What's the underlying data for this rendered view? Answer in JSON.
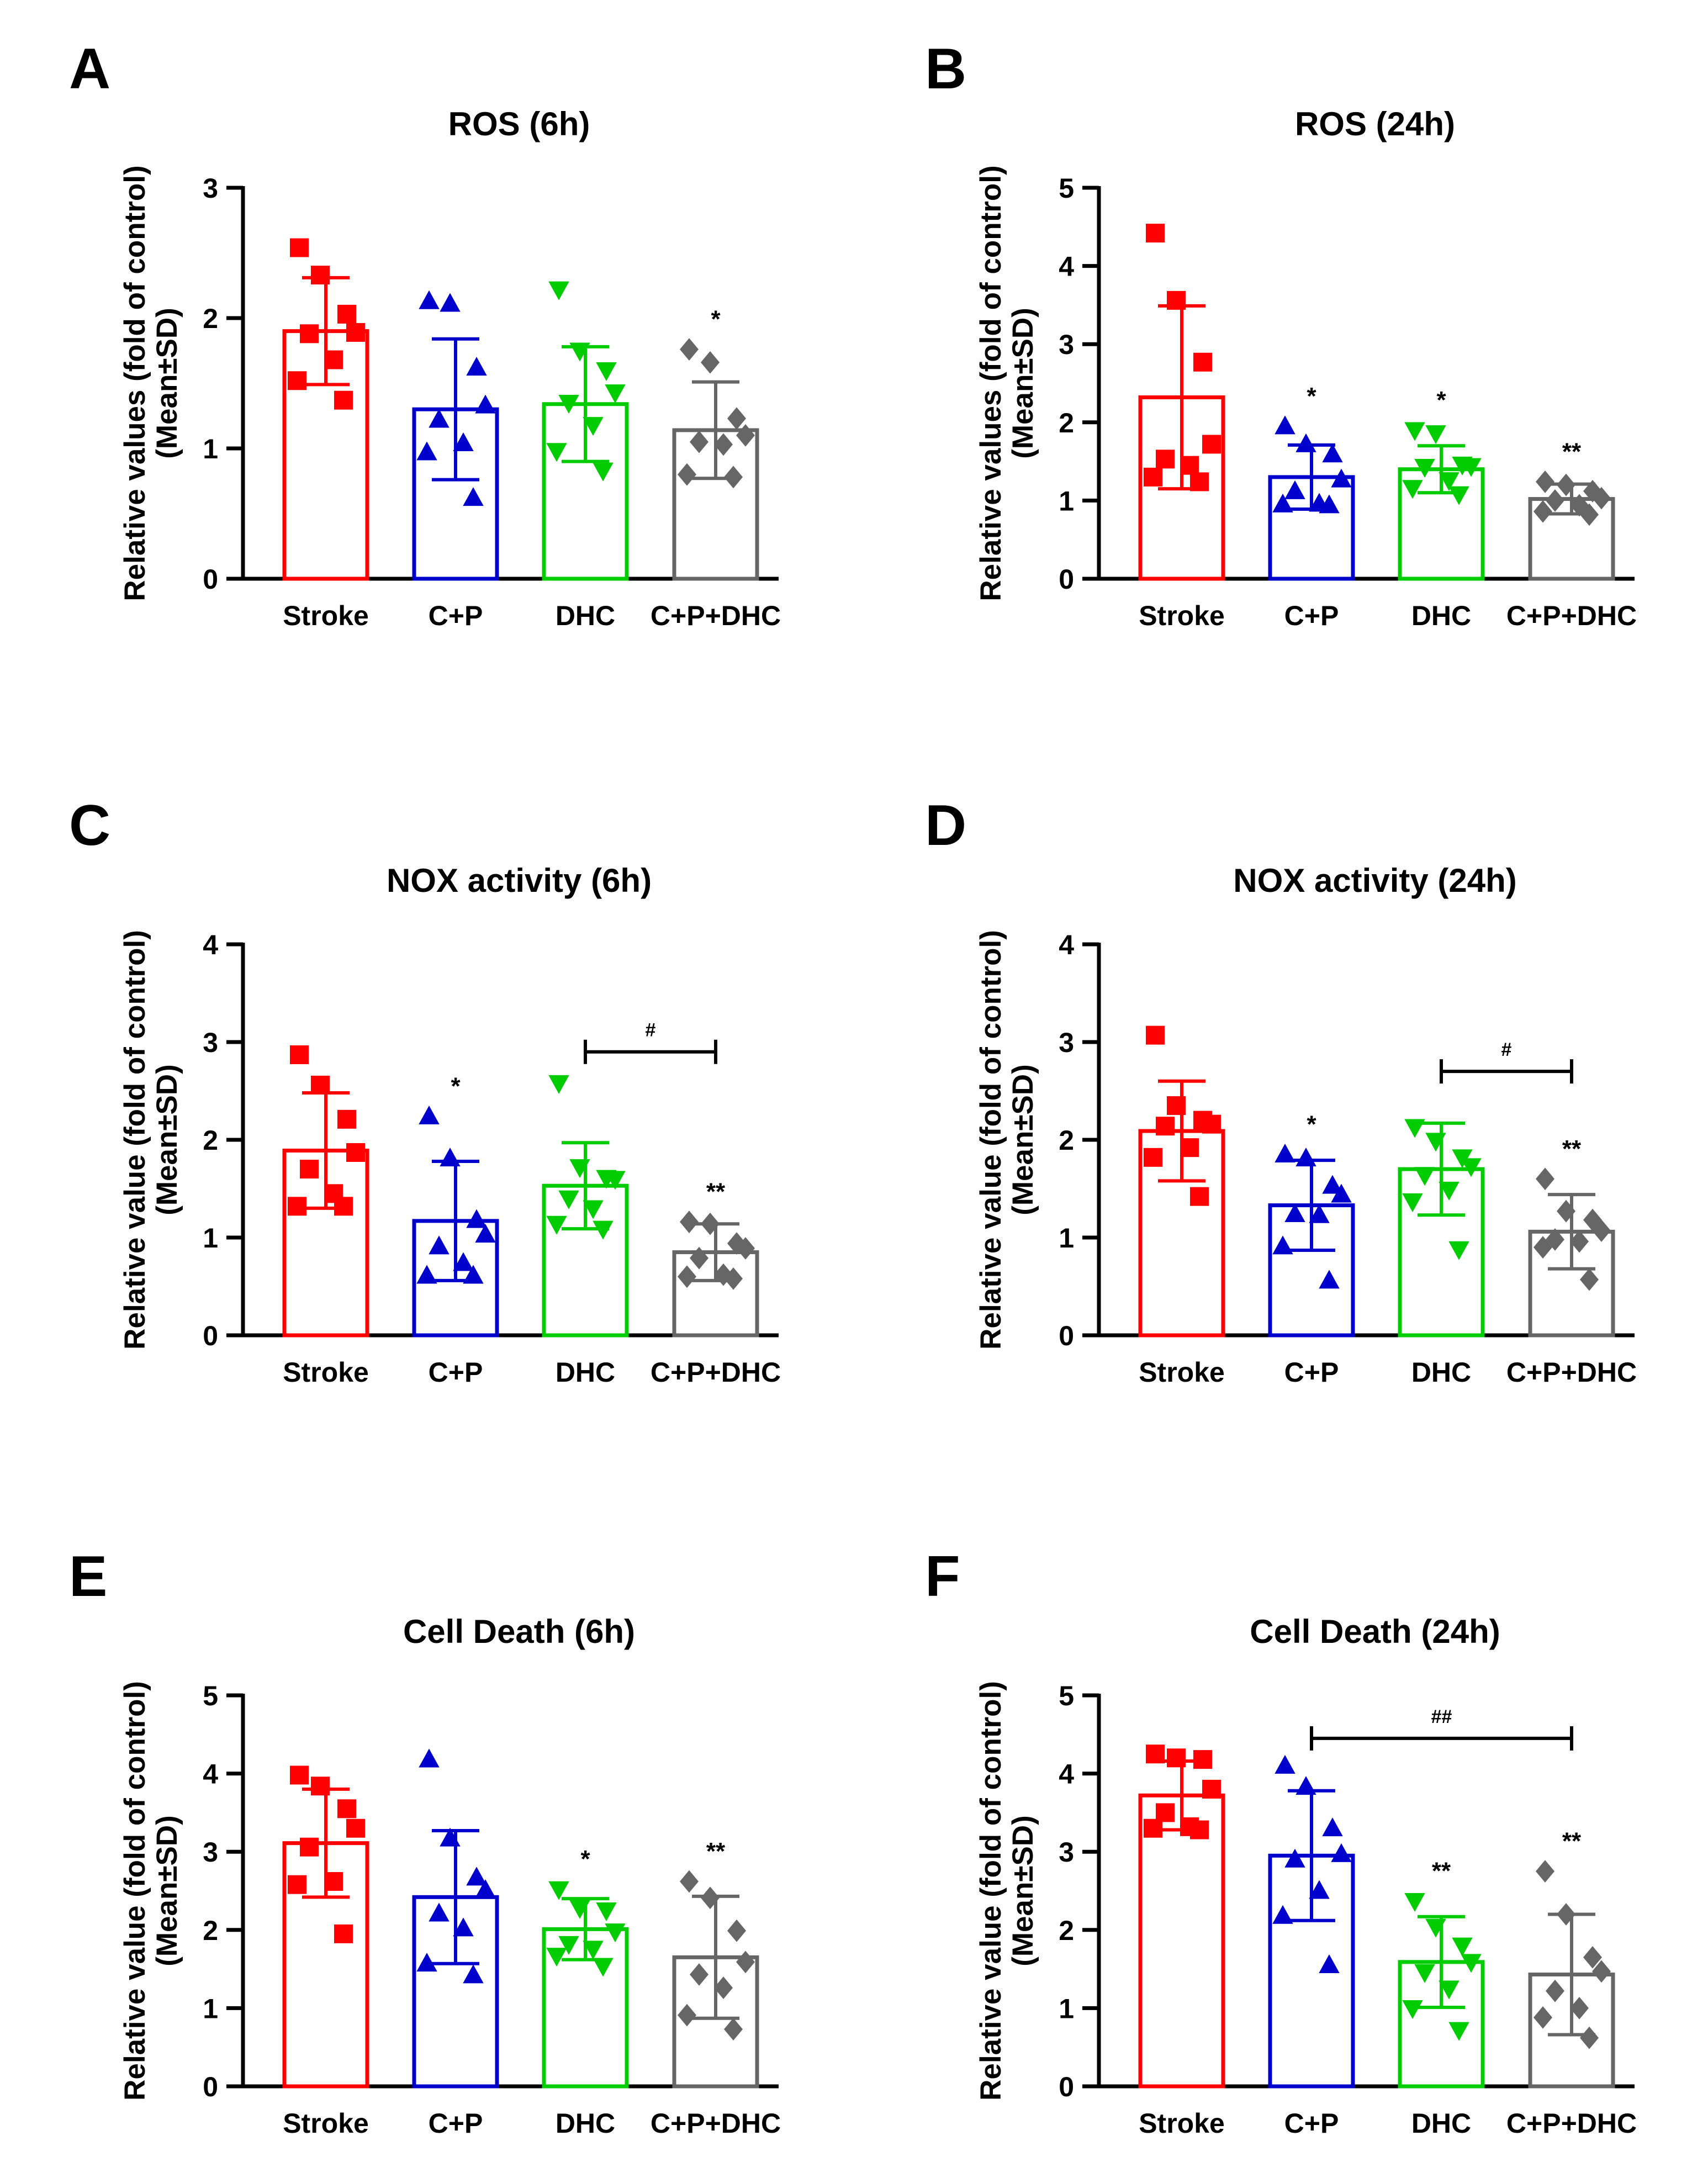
{
  "chart_data": [
    {
      "panel": "A",
      "type": "bar",
      "title": "ROS (6h)",
      "ylabel_line1": "Relative values (fold of control)",
      "ylabel_line2": "(Mean±SD)",
      "categories": [
        "Stroke",
        "C+P",
        "DHC",
        "C+P+DHC"
      ],
      "colors": [
        "#ff0000",
        "#0000cc",
        "#00cc00",
        "#666666"
      ],
      "markers": [
        "square",
        "triangle-up",
        "triangle-down",
        "diamond"
      ],
      "ylim": [
        0,
        3
      ],
      "yticks": [
        0,
        1,
        2,
        3
      ],
      "ytick_labels": [
        "0",
        "1",
        "2",
        "3"
      ],
      "means": [
        1.9,
        1.3,
        1.34,
        1.14
      ],
      "sd": [
        0.41,
        0.54,
        0.44,
        0.37
      ],
      "points": [
        [
          2.54,
          2.33,
          2.03,
          1.89,
          1.88,
          1.68,
          1.52,
          1.37
        ],
        [
          2.13,
          2.11,
          1.62,
          1.33,
          1.22,
          1.04,
          0.97,
          0.62
        ],
        [
          2.22,
          1.75,
          1.6,
          1.43,
          1.35,
          1.18,
          0.98,
          0.83
        ],
        [
          1.76,
          1.66,
          1.23,
          1.1,
          1.05,
          1.03,
          0.8,
          0.78
        ]
      ],
      "sig_labels": [
        "",
        "",
        "",
        "*"
      ],
      "bracket": null
    },
    {
      "panel": "B",
      "type": "bar",
      "title": "ROS (24h)",
      "ylabel_line1": "Relative values (fold of control)",
      "ylabel_line2": "(Mean±SD)",
      "categories": [
        "Stroke",
        "C+P",
        "DHC",
        "C+P+DHC"
      ],
      "colors": [
        "#ff0000",
        "#0000cc",
        "#00cc00",
        "#666666"
      ],
      "markers": [
        "square",
        "triangle-up",
        "triangle-down",
        "diamond"
      ],
      "ylim": [
        0,
        5
      ],
      "yticks": [
        0,
        1,
        2,
        3,
        4,
        5
      ],
      "ytick_labels": [
        "0",
        "1",
        "2",
        "3",
        "4",
        "5"
      ],
      "means": [
        2.32,
        1.3,
        1.4,
        1.02
      ],
      "sd": [
        1.17,
        0.41,
        0.3,
        0.19
      ],
      "points": [
        [
          4.42,
          3.56,
          2.77,
          1.72,
          1.53,
          1.45,
          1.3,
          1.24
        ],
        [
          1.95,
          1.72,
          1.59,
          1.27,
          1.12,
          0.96,
          0.95,
          0.94
        ],
        [
          1.9,
          1.86,
          1.46,
          1.44,
          1.43,
          1.26,
          1.16,
          1.08
        ],
        [
          1.24,
          1.2,
          1.12,
          1.03,
          1.0,
          0.94,
          0.86,
          0.82
        ]
      ],
      "sig_labels": [
        "",
        "*",
        "*",
        "**"
      ],
      "bracket": null
    },
    {
      "panel": "C",
      "type": "bar",
      "title": "NOX activity (6h)",
      "ylabel_line1": "Relative value (fold of control)",
      "ylabel_line2": "(Mean±SD)",
      "categories": [
        "Stroke",
        "C+P",
        "DHC",
        "C+P+DHC"
      ],
      "colors": [
        "#ff0000",
        "#0000cc",
        "#00cc00",
        "#666666"
      ],
      "markers": [
        "square",
        "triangle-up",
        "triangle-down",
        "diamond"
      ],
      "ylim": [
        0,
        4
      ],
      "yticks": [
        0,
        1,
        2,
        3,
        4
      ],
      "ytick_labels": [
        "0",
        "1",
        "2",
        "3",
        "4"
      ],
      "means": [
        1.89,
        1.17,
        1.53,
        0.85
      ],
      "sd": [
        0.59,
        0.61,
        0.44,
        0.29
      ],
      "points": [
        [
          2.87,
          2.56,
          2.21,
          1.87,
          1.7,
          1.45,
          1.32,
          1.32
        ],
        [
          2.24,
          1.81,
          1.18,
          1.03,
          0.91,
          0.74,
          0.61,
          0.61
        ],
        [
          2.58,
          1.72,
          1.61,
          1.6,
          1.4,
          1.3,
          1.14,
          1.09
        ],
        [
          1.16,
          1.14,
          0.94,
          0.89,
          0.79,
          0.62,
          0.6,
          0.58
        ]
      ],
      "sig_labels": [
        "",
        "*",
        "",
        "**"
      ],
      "bracket": {
        "from": 2,
        "to": 3,
        "y": 2.9,
        "label": "#"
      }
    },
    {
      "panel": "D",
      "type": "bar",
      "title": "NOX activity (24h)",
      "ylabel_line1": "Relative value (fold of control)",
      "ylabel_line2": "(Mean±SD)",
      "categories": [
        "Stroke",
        "C+P",
        "DHC",
        "C+P+DHC"
      ],
      "colors": [
        "#ff0000",
        "#0000cc",
        "#00cc00",
        "#666666"
      ],
      "markers": [
        "square",
        "triangle-up",
        "triangle-down",
        "diamond"
      ],
      "ylim": [
        0,
        4
      ],
      "yticks": [
        0,
        1,
        2,
        3,
        4
      ],
      "ytick_labels": [
        "0",
        "1",
        "2",
        "3",
        "4"
      ],
      "means": [
        2.09,
        1.33,
        1.7,
        1.06
      ],
      "sd": [
        0.51,
        0.46,
        0.47,
        0.38
      ],
      "points": [
        [
          3.07,
          2.35,
          2.2,
          2.16,
          2.14,
          1.92,
          1.82,
          1.42
        ],
        [
          1.85,
          1.81,
          1.53,
          1.44,
          1.24,
          1.23,
          0.91,
          0.56
        ],
        [
          2.13,
          1.99,
          1.82,
          1.73,
          1.64,
          1.49,
          1.37,
          0.88
        ],
        [
          1.6,
          1.27,
          1.18,
          1.07,
          0.98,
          0.96,
          0.9,
          0.57
        ]
      ],
      "sig_labels": [
        "",
        "*",
        "",
        "**"
      ],
      "bracket": {
        "from": 2,
        "to": 3,
        "y": 2.7,
        "label": "#"
      }
    },
    {
      "panel": "E",
      "type": "bar",
      "title": "Cell Death (6h)",
      "ylabel_line1": "Relative value (fold of control)",
      "ylabel_line2": "(Mean±SD)",
      "categories": [
        "Stroke",
        "C+P",
        "DHC",
        "C+P+DHC"
      ],
      "colors": [
        "#ff0000",
        "#0000cc",
        "#00cc00",
        "#666666"
      ],
      "markers": [
        "square",
        "triangle-up",
        "triangle-down",
        "diamond"
      ],
      "ylim": [
        0,
        5
      ],
      "yticks": [
        0,
        1,
        2,
        3,
        4,
        5
      ],
      "ytick_labels": [
        "0",
        "1",
        "2",
        "3",
        "4",
        "5"
      ],
      "means": [
        3.11,
        2.42,
        2.01,
        1.65
      ],
      "sd": [
        0.69,
        0.85,
        0.39,
        0.78
      ],
      "points": [
        [
          3.98,
          3.84,
          3.55,
          3.3,
          3.06,
          2.62,
          2.58,
          1.95
        ],
        [
          4.18,
          3.17,
          2.67,
          2.51,
          2.21,
          2.02,
          1.57,
          1.42
        ],
        [
          2.52,
          2.28,
          2.25,
          1.98,
          1.82,
          1.76,
          1.67,
          1.54
        ],
        [
          2.62,
          2.41,
          1.99,
          1.59,
          1.43,
          1.26,
          0.91,
          0.73
        ]
      ],
      "sig_labels": [
        "",
        "",
        "*",
        "**"
      ],
      "bracket": null
    },
    {
      "panel": "F",
      "type": "bar",
      "title": "Cell Death (24h)",
      "ylabel_line1": "Relative value (fold of control)",
      "ylabel_line2": "(Mean±SD)",
      "categories": [
        "Stroke",
        "C+P",
        "DHC",
        "C+P+DHC"
      ],
      "colors": [
        "#ff0000",
        "#0000cc",
        "#00cc00",
        "#666666"
      ],
      "markers": [
        "square",
        "triangle-up",
        "triangle-down",
        "diamond"
      ],
      "ylim": [
        0,
        5
      ],
      "yticks": [
        0,
        1,
        2,
        3,
        4,
        5
      ],
      "ytick_labels": [
        "0",
        "1",
        "2",
        "3",
        "4",
        "5"
      ],
      "means": [
        3.72,
        2.95,
        1.59,
        1.43
      ],
      "sd": [
        0.44,
        0.83,
        0.58,
        0.77
      ],
      "points": [
        [
          4.25,
          4.2,
          4.18,
          3.8,
          3.5,
          3.32,
          3.3,
          3.28
        ],
        [
          4.1,
          3.83,
          3.3,
          2.97,
          2.9,
          2.5,
          2.18,
          1.55
        ],
        [
          2.37,
          2.04,
          1.8,
          1.59,
          1.46,
          1.25,
          1.0,
          0.72
        ],
        [
          2.75,
          2.2,
          1.65,
          1.47,
          1.22,
          1.0,
          0.88,
          0.62
        ]
      ],
      "sig_labels": [
        "",
        "",
        "**",
        "**"
      ],
      "bracket": {
        "from": 1,
        "to": 3,
        "y": 4.45,
        "label": "##"
      }
    }
  ]
}
